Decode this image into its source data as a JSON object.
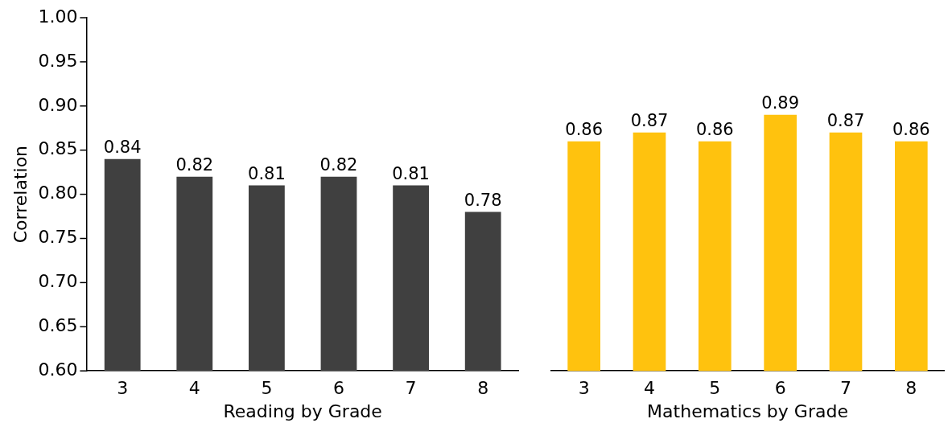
{
  "chart_data": [
    {
      "type": "bar",
      "xlabel": "Reading by Grade",
      "ylabel": "Correlation",
      "categories": [
        "3",
        "4",
        "5",
        "6",
        "7",
        "8"
      ],
      "values": [
        0.84,
        0.82,
        0.81,
        0.82,
        0.81,
        0.78
      ],
      "color": "#404040",
      "ylim": [
        0.6,
        1.0
      ],
      "yticks": [
        {
          "value": 0.6,
          "label": "0.60"
        },
        {
          "value": 0.65,
          "label": "0.65"
        },
        {
          "value": 0.7,
          "label": "0.70"
        },
        {
          "value": 0.75,
          "label": "0.75"
        },
        {
          "value": 0.8,
          "label": "0.80"
        },
        {
          "value": 0.85,
          "label": "0.85"
        },
        {
          "value": 0.9,
          "label": "0.90"
        },
        {
          "value": 0.95,
          "label": "0.95"
        },
        {
          "value": 1.0,
          "label": "1.00"
        }
      ],
      "data_labels": true
    },
    {
      "type": "bar",
      "xlabel": "Mathematics by Grade",
      "categories": [
        "3",
        "4",
        "5",
        "6",
        "7",
        "8"
      ],
      "values": [
        0.86,
        0.87,
        0.86,
        0.89,
        0.87,
        0.86
      ],
      "color": "#ffc20e",
      "ylim": [
        0.6,
        1.0
      ],
      "tick_labels": "x",
      "data_labels": true
    }
  ]
}
